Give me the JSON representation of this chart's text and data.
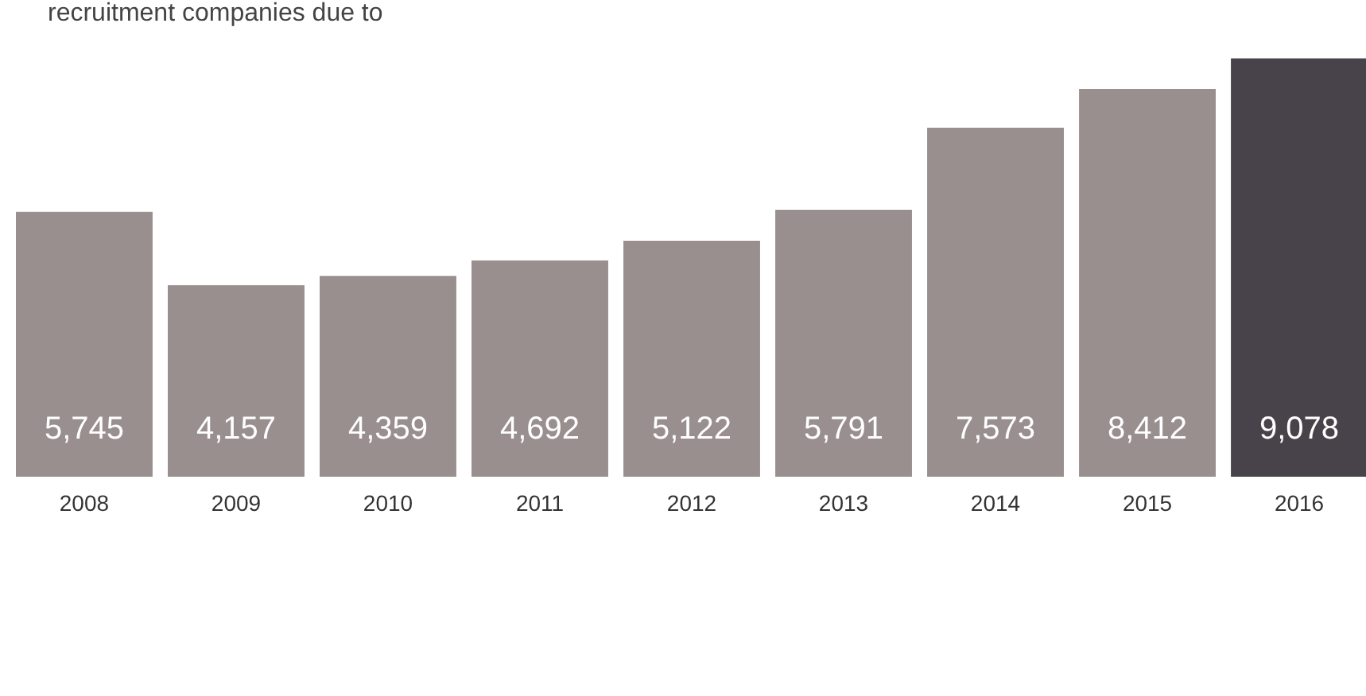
{
  "chart_data": {
    "type": "bar",
    "title": "recruitment companies due to",
    "categories": [
      "2008",
      "2009",
      "2010",
      "2011",
      "2012",
      "2013",
      "2014",
      "2015",
      "2016"
    ],
    "values": [
      5745,
      4157,
      4359,
      4692,
      5122,
      5791,
      7573,
      8412,
      9078
    ],
    "value_labels": [
      "5,745",
      "4,157",
      "4,359",
      "4,692",
      "5,122",
      "5,791",
      "7,573",
      "8,412",
      "9,078"
    ],
    "colors": [
      "#998f8f",
      "#998f8f",
      "#998f8f",
      "#998f8f",
      "#998f8f",
      "#998f8f",
      "#998f8f",
      "#998f8f",
      "#48434a"
    ]
  }
}
